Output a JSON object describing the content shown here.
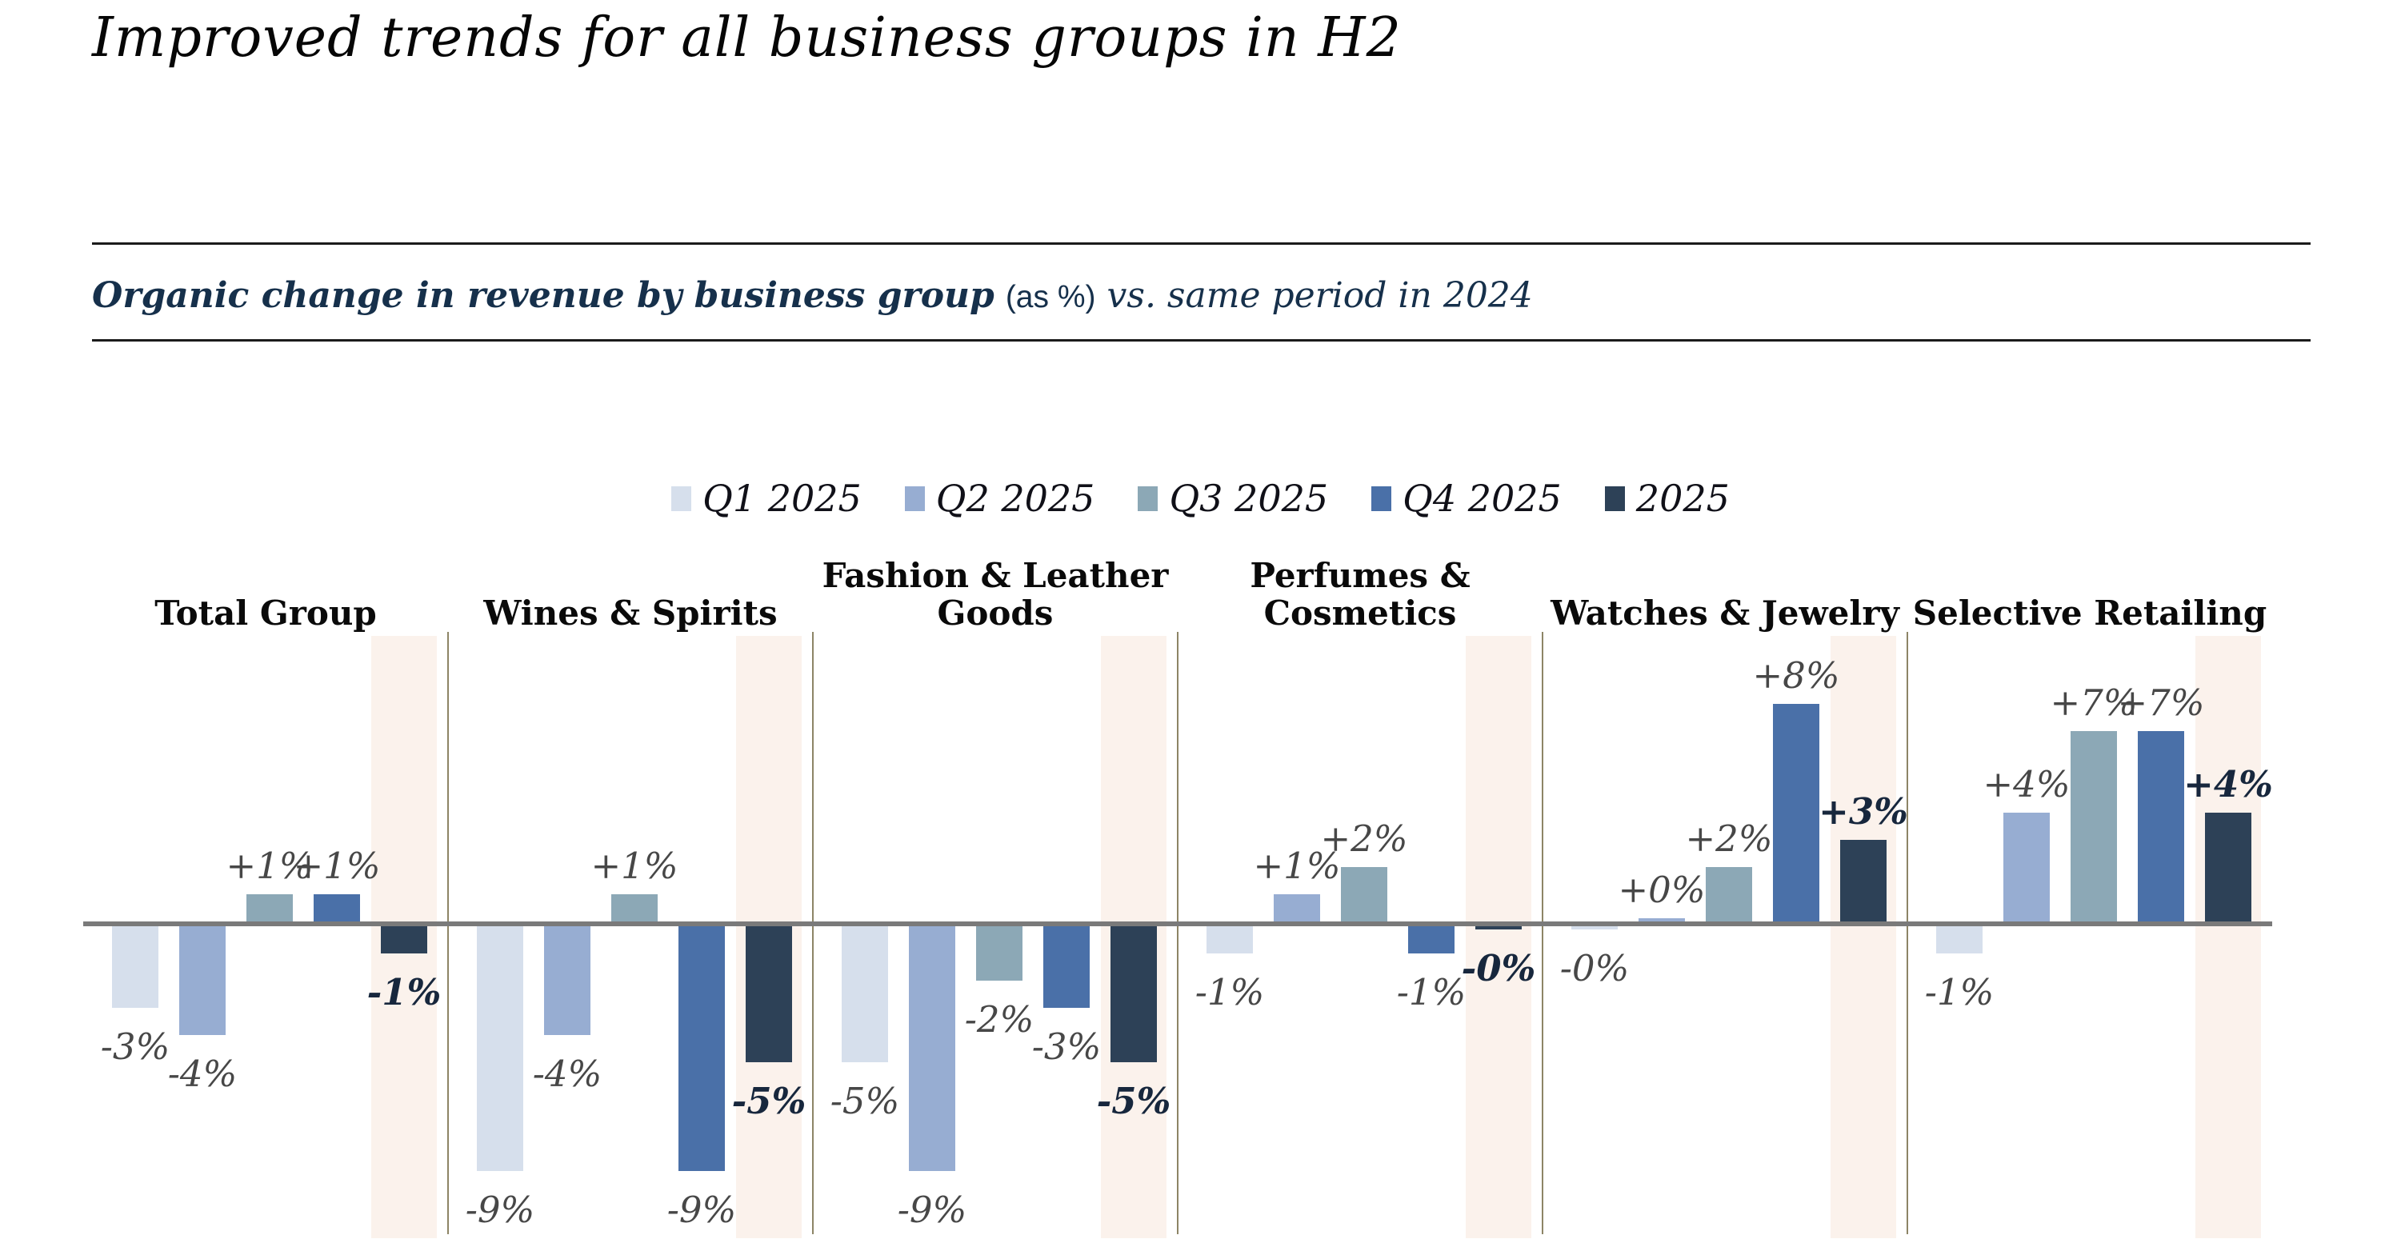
{
  "title": "Improved trends for all business groups in H2",
  "subtitle": {
    "bold": "Organic change in revenue by business group",
    "unit": "(as %)",
    "comparison": "vs. same period in 2024"
  },
  "legend": [
    {
      "label": "Q1 2025",
      "color": "#d6dfec"
    },
    {
      "label": "Q2 2025",
      "color": "#97add2"
    },
    {
      "label": "Q3 2025",
      "color": "#8ca8b6"
    },
    {
      "label": "Q4 2025",
      "color": "#4a70a8"
    },
    {
      "label": "2025",
      "color": "#2d4157"
    }
  ],
  "chart_data": {
    "type": "bar",
    "title": "Improved trends for all business groups in H2",
    "subtitle": "Organic change in revenue by business group (as %) vs. same period in 2024",
    "unit": "%",
    "ylim": [
      -10,
      9
    ],
    "grid": false,
    "legend_position": "top-center",
    "series_labels": [
      "Q1 2025",
      "Q2 2025",
      "Q3 2025",
      "Q4 2025",
      "2025"
    ],
    "series_colors": [
      "#d6dfec",
      "#97add2",
      "#8ca8b6",
      "#4a70a8",
      "#2d4157"
    ],
    "highlighted_series": "2025",
    "groups": [
      {
        "name": "Total Group",
        "values": [
          -3,
          -4,
          1,
          1,
          -1
        ],
        "labels": [
          "-3%",
          "-4%",
          "+1%",
          "+1%",
          "-1%"
        ]
      },
      {
        "name": "Wines & Spirits",
        "values": [
          -9,
          -4,
          1,
          -9,
          -5
        ],
        "labels": [
          "-9%",
          "-4%",
          "+1%",
          "-9%",
          "-5%"
        ]
      },
      {
        "name": "Fashion & Leather Goods",
        "name_display": "Fashion & Leather\nGoods",
        "values": [
          -5,
          -9,
          -2,
          -3,
          -5
        ],
        "labels": [
          "-5%",
          "-9%",
          "-2%",
          "-3%",
          "-5%"
        ]
      },
      {
        "name": "Perfumes & Cosmetics",
        "values": [
          -1,
          1,
          2,
          -1,
          0
        ],
        "labels": [
          "-1%",
          "+1%",
          "+2%",
          "-1%",
          "-0%"
        ]
      },
      {
        "name": "Watches & Jewelry",
        "values": [
          0,
          0,
          2,
          8,
          3
        ],
        "labels": [
          "-0%",
          "+0%",
          "+2%",
          "+8%",
          "+3%"
        ]
      },
      {
        "name": "Selective Retailing",
        "values": [
          -1,
          4,
          7,
          7,
          4
        ],
        "labels": [
          "-1%",
          "+4%",
          "+7%",
          "+7%",
          "+4%"
        ]
      }
    ],
    "styles": {
      "band_color": "#fbf2ec",
      "zero_line_color": "#7a7a7a",
      "divider_color": "#8d8566",
      "quarter_label_color": "#474747",
      "year_label_color": "#17273d"
    }
  }
}
